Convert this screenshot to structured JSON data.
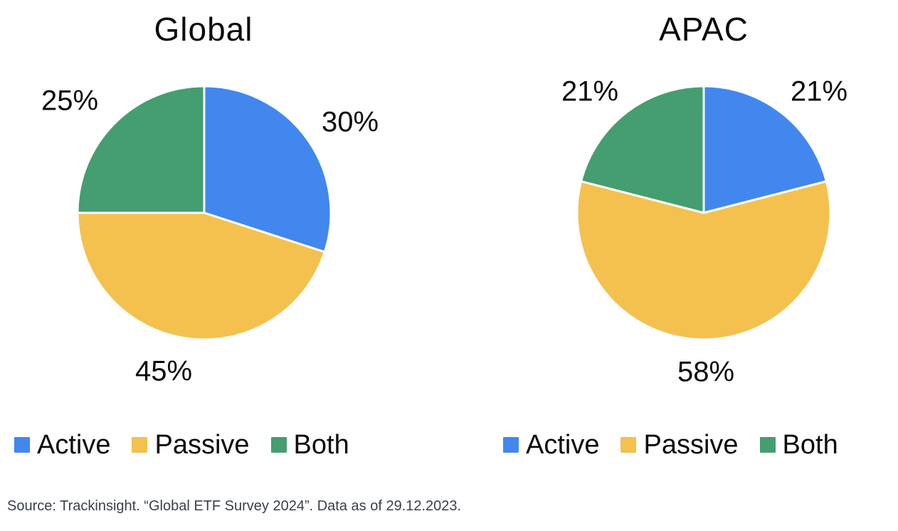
{
  "page": {
    "background": "#ffffff"
  },
  "colors": {
    "active": "#4287EE",
    "passive": "#F4C14F",
    "both": "#449E6F",
    "label_text": "#0b0b0b",
    "source_text": "#3a414c",
    "slice_separator": "#ffffff"
  },
  "source_note": "Source: Trackinsight. “Global ETF Survey 2024”. Data as of 29.12.2023.",
  "chart_data": [
    {
      "type": "pie",
      "title": "Global",
      "categories": [
        "Active",
        "Passive",
        "Both"
      ],
      "values": [
        30,
        45,
        25
      ],
      "labels": [
        "30%",
        "45%",
        "25%"
      ],
      "colors": [
        "#4287EE",
        "#F4C14F",
        "#449E6F"
      ],
      "start_angle_deg": 0,
      "direction": "clockwise",
      "legend_position": "bottom"
    },
    {
      "type": "pie",
      "title": "APAC",
      "categories": [
        "Active",
        "Passive",
        "Both"
      ],
      "values": [
        21,
        58,
        21
      ],
      "labels": [
        "21%",
        "58%",
        "21%"
      ],
      "colors": [
        "#4287EE",
        "#F4C14F",
        "#449E6F"
      ],
      "start_angle_deg": 0,
      "direction": "clockwise",
      "legend_position": "bottom"
    }
  ]
}
